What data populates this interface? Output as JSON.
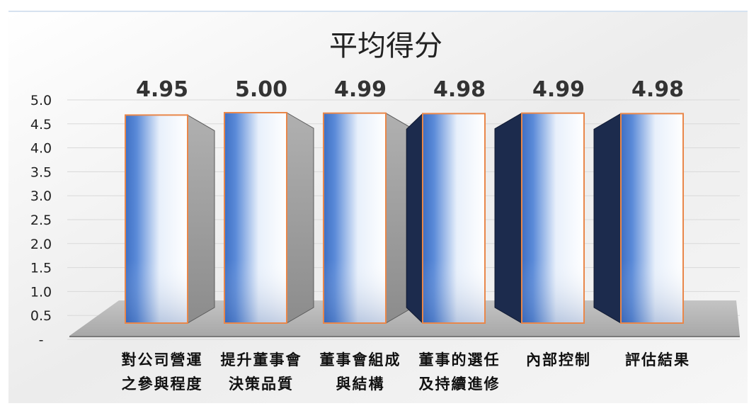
{
  "chart_data": {
    "type": "bar",
    "title": "平均得分",
    "categories": [
      [
        "對公司營運",
        "之參與程度"
      ],
      [
        "提升董事會",
        "決策品質"
      ],
      [
        "董事會組成",
        "與結構"
      ],
      [
        "董事的選任",
        "及持續進修"
      ],
      [
        "內部控制"
      ],
      [
        "評估結果"
      ]
    ],
    "values": [
      4.95,
      5.0,
      4.99,
      4.98,
      4.99,
      4.98
    ],
    "data_labels": [
      "4.95",
      "5.00",
      "4.99",
      "4.98",
      "4.99",
      "4.98"
    ],
    "y_ticks": [
      "-",
      "0.5",
      "1.0",
      "1.5",
      "2.0",
      "2.5",
      "3.0",
      "3.5",
      "4.0",
      "4.5",
      "5.0"
    ],
    "ylim": [
      0,
      5
    ],
    "grid": true,
    "legend": "none",
    "colors": {
      "bar_dark": "#3e6fc4",
      "bar_light": "#ffffff",
      "bar_outline": "#e9874a",
      "side_gray": "#a9a9a9",
      "side_navy": "#1c2b4d",
      "floor": "#b8b8b8",
      "grid": "#d9d9d9",
      "text": "#222222"
    }
  }
}
